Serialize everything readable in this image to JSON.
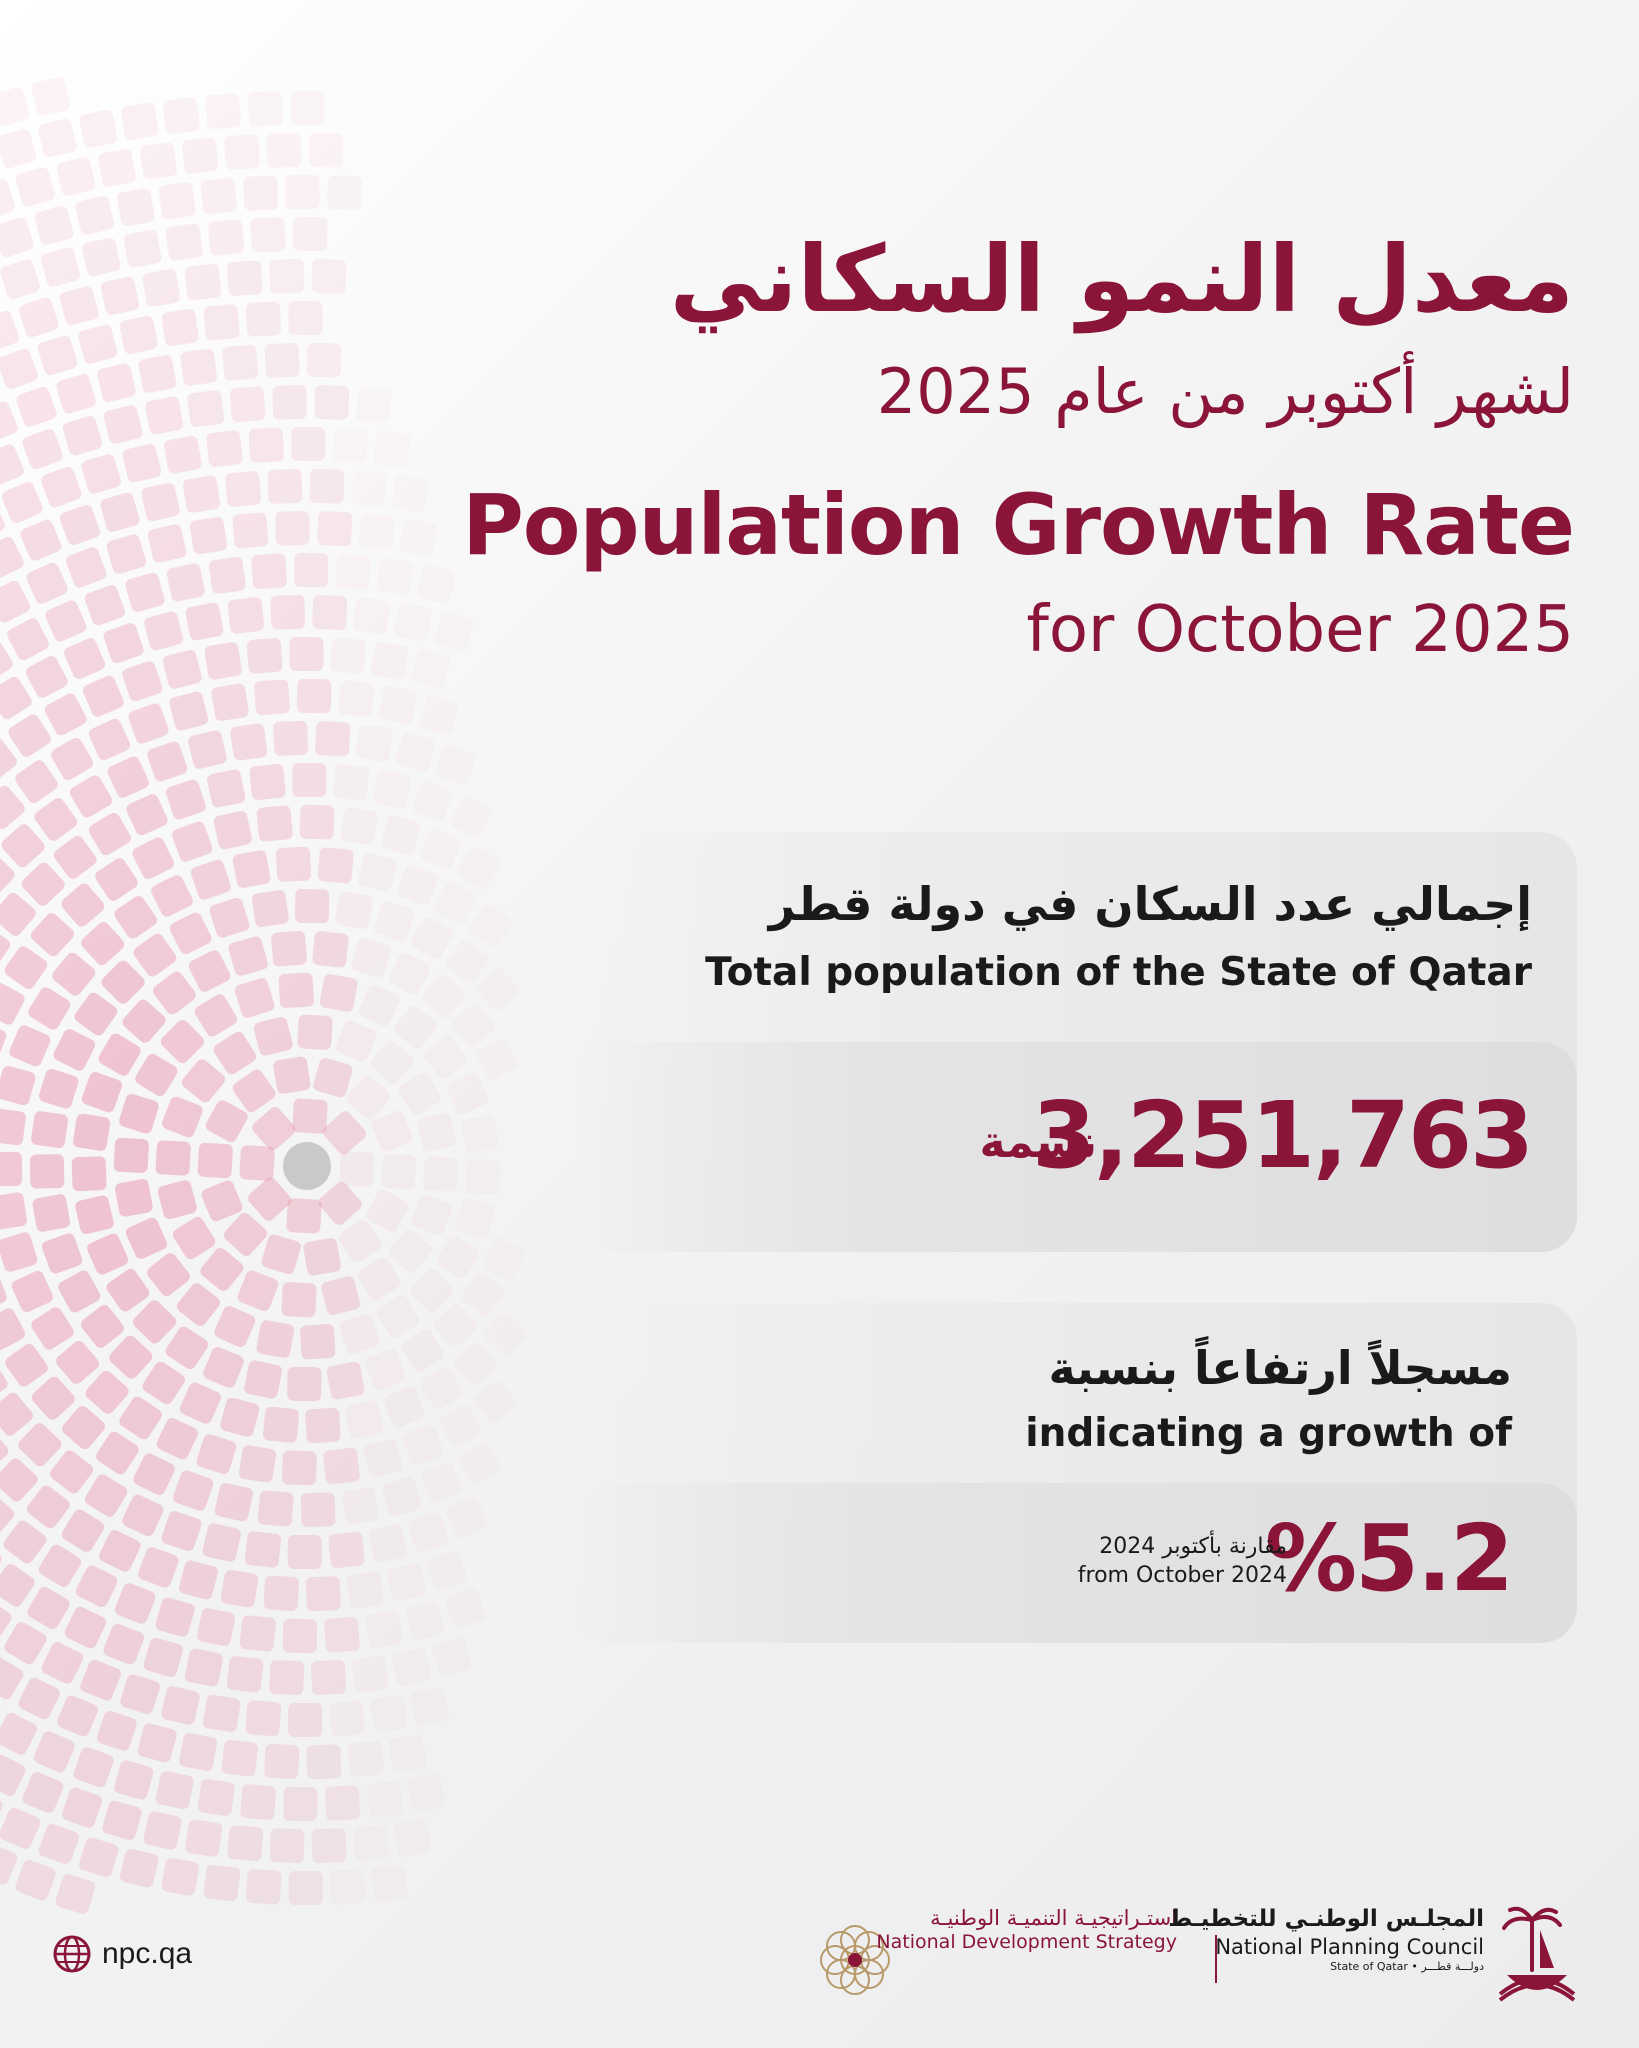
{
  "colors": {
    "accent": "#8a1538",
    "text": "#1a1a1a",
    "background": "#f3f3f4"
  },
  "header": {
    "title_ar": "معدل النمو السكاني",
    "subtitle_ar": "لشهر أكتوبر من عام 2025",
    "title_en": "Population Growth Rate",
    "subtitle_en": "for October 2025"
  },
  "population_card": {
    "label_ar": "إجمالي عدد السكان في دولة قطر",
    "label_en": "Total population of the State of Qatar",
    "value": "3,251,763",
    "unit_ar": "نسمة"
  },
  "growth_card": {
    "label_ar": "مسجلاً ارتفاعاً بنسبة",
    "label_en": "indicating a growth of",
    "value": "%5.2",
    "comparison_ar": "مقارنة بأكتوبر 2024",
    "comparison_en": "from October 2024"
  },
  "footer": {
    "website": "npc.qa",
    "website_icon": "globe-icon",
    "nds_ar": "استـراتيجيـة التنميـة الوطنيـة",
    "nds_en": "National Development Strategy",
    "npc_ar": "المجلـس الوطنـي للتخطيـط",
    "npc_en": "National Planning Council",
    "npc_sub": "State of Qatar • دولـــة قطـــر"
  }
}
